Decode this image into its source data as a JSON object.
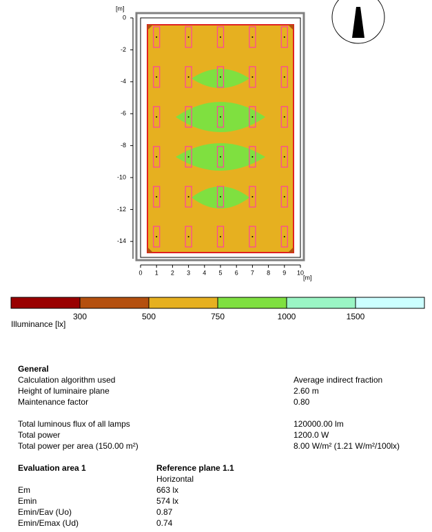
{
  "plot": {
    "x_unit": "[m]",
    "y_unit": "[m]",
    "xticks": [
      0,
      1,
      2,
      3,
      4,
      5,
      6,
      7,
      8,
      9,
      10
    ],
    "yticks": [
      0,
      -2,
      -4,
      -6,
      -8,
      -10,
      -12,
      -14
    ]
  },
  "legend": {
    "title": "Illuminance [lx]",
    "labels": [
      300,
      500,
      750,
      1000,
      1500
    ],
    "colors": [
      "#990000",
      "#b4500f",
      "#e6b020",
      "#7fe040",
      "#9af5c4",
      "#ccffff"
    ]
  },
  "general": {
    "title": "General",
    "rows": [
      [
        "Calculation algorithm used",
        "Average indirect fraction"
      ],
      [
        "Height of luminaire plane",
        "2.60 m"
      ],
      [
        "Maintenance factor",
        "0.80"
      ]
    ],
    "rows2": [
      [
        "Total luminous flux of all lamps",
        "120000.00 lm"
      ],
      [
        "Total power",
        "1200.0 W"
      ],
      [
        "Total power per area (150.00 m²)",
        "8.00 W/m² (1.21 W/m²/100lx)"
      ]
    ]
  },
  "evaluation": {
    "title": "Evaluation area 1",
    "plane": "Reference plane 1.1",
    "orientation": "Horizontal",
    "rows": [
      [
        "Em",
        "663 lx"
      ],
      [
        "Emin",
        "574 lx"
      ],
      [
        "Emin/Eav (Uo)",
        "0.87"
      ],
      [
        "Emin/Emax (Ud)",
        "0.74"
      ]
    ]
  }
}
